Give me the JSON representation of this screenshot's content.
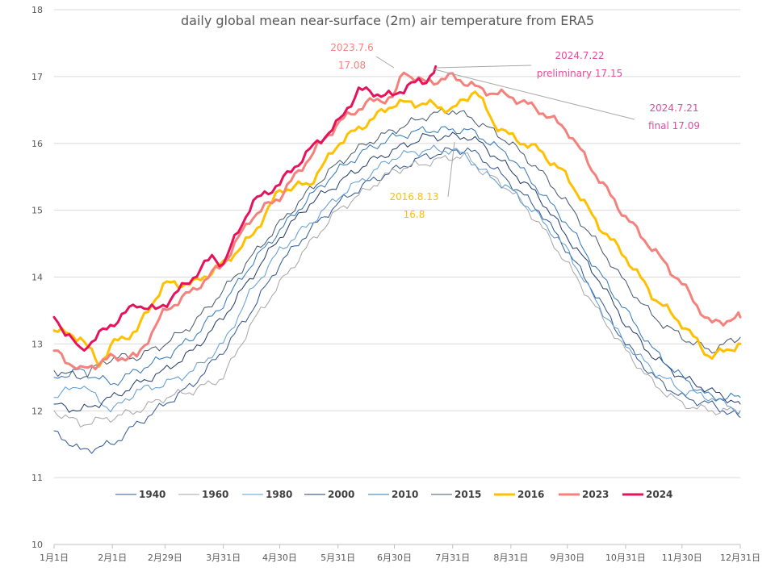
{
  "chart_data": {
    "type": "line",
    "title": "daily global mean near-surface (2m) air temperature from ERA5",
    "xlabel": "",
    "ylabel": "",
    "x_range": [
      "1月1日",
      "12月31日"
    ],
    "x_ticks": [
      {
        "day": 1,
        "label": "1月1日"
      },
      {
        "day": 32,
        "label": "2月1日"
      },
      {
        "day": 60,
        "label": "2月29日"
      },
      {
        "day": 91,
        "label": "3月31日"
      },
      {
        "day": 121,
        "label": "4月30日"
      },
      {
        "day": 152,
        "label": "5月31日"
      },
      {
        "day": 182,
        "label": "6月30日"
      },
      {
        "day": 213,
        "label": "7月31日"
      },
      {
        "day": 244,
        "label": "8月31日"
      },
      {
        "day": 274,
        "label": "9月30日"
      },
      {
        "day": 305,
        "label": "10月31日"
      },
      {
        "day": 335,
        "label": "11月30日"
      },
      {
        "day": 366,
        "label": "12月31日"
      }
    ],
    "ylim": [
      10,
      18
    ],
    "y_ticks": [
      10,
      11,
      12,
      13,
      14,
      15,
      16,
      17,
      18
    ],
    "grid": "horizontal",
    "legend_position": "bottom",
    "series": [
      {
        "name": "1940",
        "color": "#2e5596",
        "width": 1,
        "points": [
          [
            1,
            11.7
          ],
          [
            15,
            11.4
          ],
          [
            32,
            11.5
          ],
          [
            45,
            11.8
          ],
          [
            60,
            12.1
          ],
          [
            75,
            12.4
          ],
          [
            91,
            12.9
          ],
          [
            106,
            13.5
          ],
          [
            121,
            14.2
          ],
          [
            137,
            14.7
          ],
          [
            152,
            15.1
          ],
          [
            167,
            15.4
          ],
          [
            182,
            15.6
          ],
          [
            198,
            15.8
          ],
          [
            213,
            15.9
          ],
          [
            221,
            15.9
          ],
          [
            228,
            15.8
          ],
          [
            244,
            15.4
          ],
          [
            259,
            15.0
          ],
          [
            274,
            14.4
          ],
          [
            290,
            13.7
          ],
          [
            305,
            13.0
          ],
          [
            320,
            12.5
          ],
          [
            335,
            12.2
          ],
          [
            350,
            12.1
          ],
          [
            366,
            11.9
          ]
        ]
      },
      {
        "name": "1960",
        "color": "#a5a5a5",
        "width": 1,
        "points": [
          [
            1,
            12.0
          ],
          [
            15,
            11.8
          ],
          [
            32,
            11.9
          ],
          [
            45,
            12.0
          ],
          [
            60,
            12.2
          ],
          [
            75,
            12.3
          ],
          [
            91,
            12.5
          ],
          [
            106,
            13.3
          ],
          [
            121,
            13.9
          ],
          [
            137,
            14.5
          ],
          [
            152,
            15.0
          ],
          [
            167,
            15.3
          ],
          [
            182,
            15.6
          ],
          [
            198,
            15.7
          ],
          [
            213,
            15.8
          ],
          [
            221,
            15.8
          ],
          [
            228,
            15.6
          ],
          [
            244,
            15.3
          ],
          [
            259,
            14.8
          ],
          [
            274,
            14.2
          ],
          [
            290,
            13.5
          ],
          [
            305,
            12.9
          ],
          [
            320,
            12.4
          ],
          [
            335,
            12.1
          ],
          [
            350,
            12.0
          ],
          [
            366,
            12.0
          ]
        ]
      },
      {
        "name": "1980",
        "color": "#5b9bd5",
        "width": 1,
        "points": [
          [
            1,
            12.2
          ],
          [
            15,
            12.4
          ],
          [
            32,
            12.0
          ],
          [
            45,
            12.3
          ],
          [
            60,
            12.4
          ],
          [
            75,
            12.6
          ],
          [
            91,
            13.0
          ],
          [
            106,
            13.8
          ],
          [
            121,
            14.4
          ],
          [
            137,
            14.8
          ],
          [
            152,
            15.2
          ],
          [
            167,
            15.5
          ],
          [
            182,
            15.8
          ],
          [
            198,
            15.9
          ],
          [
            213,
            15.9
          ],
          [
            221,
            15.8
          ],
          [
            228,
            15.6
          ],
          [
            244,
            15.3
          ],
          [
            259,
            14.9
          ],
          [
            274,
            14.4
          ],
          [
            290,
            13.6
          ],
          [
            305,
            13.0
          ],
          [
            320,
            12.6
          ],
          [
            335,
            12.3
          ],
          [
            350,
            12.2
          ],
          [
            366,
            12.0
          ]
        ]
      },
      {
        "name": "2000",
        "color": "#1f3864",
        "width": 1,
        "points": [
          [
            1,
            12.1
          ],
          [
            15,
            12.0
          ],
          [
            32,
            12.2
          ],
          [
            45,
            12.4
          ],
          [
            60,
            12.6
          ],
          [
            75,
            12.9
          ],
          [
            91,
            13.4
          ],
          [
            106,
            14.0
          ],
          [
            121,
            14.6
          ],
          [
            137,
            15.1
          ],
          [
            152,
            15.4
          ],
          [
            167,
            15.7
          ],
          [
            182,
            15.9
          ],
          [
            198,
            16.1
          ],
          [
            213,
            16.1
          ],
          [
            221,
            16.1
          ],
          [
            228,
            16.0
          ],
          [
            244,
            15.6
          ],
          [
            259,
            15.2
          ],
          [
            274,
            14.6
          ],
          [
            290,
            14.0
          ],
          [
            305,
            13.3
          ],
          [
            320,
            12.8
          ],
          [
            335,
            12.5
          ],
          [
            350,
            12.3
          ],
          [
            366,
            12.1
          ]
        ]
      },
      {
        "name": "2010",
        "color": "#2e75b6",
        "width": 1,
        "points": [
          [
            1,
            12.5
          ],
          [
            15,
            12.6
          ],
          [
            32,
            12.4
          ],
          [
            45,
            12.6
          ],
          [
            60,
            12.8
          ],
          [
            75,
            13.1
          ],
          [
            91,
            13.6
          ],
          [
            106,
            14.2
          ],
          [
            121,
            14.7
          ],
          [
            137,
            15.2
          ],
          [
            152,
            15.6
          ],
          [
            167,
            15.9
          ],
          [
            182,
            16.1
          ],
          [
            198,
            16.2
          ],
          [
            213,
            16.2
          ],
          [
            221,
            16.2
          ],
          [
            228,
            16.1
          ],
          [
            244,
            15.8
          ],
          [
            259,
            15.3
          ],
          [
            274,
            14.8
          ],
          [
            290,
            14.1
          ],
          [
            305,
            13.5
          ],
          [
            320,
            12.9
          ],
          [
            335,
            12.5
          ],
          [
            350,
            12.2
          ],
          [
            366,
            12.2
          ]
        ]
      },
      {
        "name": "2015",
        "color": "#44546a",
        "width": 1,
        "points": [
          [
            1,
            12.6
          ],
          [
            15,
            12.5
          ],
          [
            32,
            12.8
          ],
          [
            45,
            12.8
          ],
          [
            60,
            13.0
          ],
          [
            75,
            13.3
          ],
          [
            91,
            13.8
          ],
          [
            106,
            14.3
          ],
          [
            121,
            14.8
          ],
          [
            137,
            15.3
          ],
          [
            152,
            15.7
          ],
          [
            167,
            16.0
          ],
          [
            182,
            16.2
          ],
          [
            198,
            16.4
          ],
          [
            213,
            16.5
          ],
          [
            221,
            16.4
          ],
          [
            228,
            16.3
          ],
          [
            244,
            16.0
          ],
          [
            259,
            15.6
          ],
          [
            274,
            15.1
          ],
          [
            290,
            14.5
          ],
          [
            305,
            13.9
          ],
          [
            320,
            13.4
          ],
          [
            335,
            13.1
          ],
          [
            350,
            12.9
          ],
          [
            366,
            13.1
          ]
        ]
      },
      {
        "name": "2016",
        "color": "#ffc000",
        "width": 3,
        "points": [
          [
            1,
            13.2
          ],
          [
            15,
            13.1
          ],
          [
            25,
            12.7
          ],
          [
            32,
            13.0
          ],
          [
            45,
            13.2
          ],
          [
            55,
            13.7
          ],
          [
            60,
            13.9
          ],
          [
            75,
            13.9
          ],
          [
            91,
            14.2
          ],
          [
            106,
            14.6
          ],
          [
            121,
            15.3
          ],
          [
            137,
            15.4
          ],
          [
            145,
            15.7
          ],
          [
            152,
            16.0
          ],
          [
            167,
            16.3
          ],
          [
            182,
            16.6
          ],
          [
            198,
            16.6
          ],
          [
            213,
            16.5
          ],
          [
            225,
            16.8
          ],
          [
            235,
            16.3
          ],
          [
            244,
            16.1
          ],
          [
            259,
            15.9
          ],
          [
            274,
            15.5
          ],
          [
            290,
            14.8
          ],
          [
            305,
            14.3
          ],
          [
            320,
            13.7
          ],
          [
            335,
            13.3
          ],
          [
            350,
            12.8
          ],
          [
            366,
            13.0
          ]
        ]
      },
      {
        "name": "2023",
        "color": "#f4817c",
        "width": 3,
        "points": [
          [
            1,
            12.9
          ],
          [
            15,
            12.6
          ],
          [
            32,
            12.8
          ],
          [
            45,
            12.8
          ],
          [
            60,
            13.5
          ],
          [
            75,
            13.8
          ],
          [
            91,
            14.2
          ],
          [
            106,
            14.9
          ],
          [
            121,
            15.2
          ],
          [
            137,
            15.8
          ],
          [
            152,
            16.3
          ],
          [
            167,
            16.6
          ],
          [
            182,
            16.7
          ],
          [
            187,
            17.08
          ],
          [
            198,
            16.9
          ],
          [
            213,
            17.0
          ],
          [
            221,
            16.9
          ],
          [
            228,
            16.8
          ],
          [
            244,
            16.7
          ],
          [
            259,
            16.5
          ],
          [
            274,
            16.2
          ],
          [
            290,
            15.5
          ],
          [
            305,
            14.9
          ],
          [
            320,
            14.4
          ],
          [
            335,
            13.9
          ],
          [
            350,
            13.3
          ],
          [
            366,
            13.4
          ]
        ]
      },
      {
        "name": "2024",
        "color": "#e8125a",
        "width": 3,
        "points": [
          [
            1,
            13.4
          ],
          [
            15,
            12.9
          ],
          [
            32,
            13.3
          ],
          [
            45,
            13.6
          ],
          [
            55,
            13.5
          ],
          [
            60,
            13.6
          ],
          [
            75,
            14.0
          ],
          [
            85,
            14.3
          ],
          [
            91,
            14.2
          ],
          [
            106,
            15.1
          ],
          [
            121,
            15.4
          ],
          [
            137,
            15.9
          ],
          [
            152,
            16.3
          ],
          [
            163,
            16.8
          ],
          [
            182,
            16.7
          ],
          [
            190,
            16.9
          ],
          [
            198,
            16.9
          ],
          [
            204,
            17.15
          ]
        ]
      }
    ],
    "annotations": [
      {
        "lines": [
          "2023.7.6",
          "17.08"
        ],
        "color": "#f4817c",
        "point_day": 187,
        "point_value": 17.08
      },
      {
        "lines": [
          "2024.7.22",
          "preliminary 17.15"
        ],
        "color": "#e8499c",
        "point_day": 204,
        "point_value": 17.15
      },
      {
        "lines": [
          "2024.7.21",
          "final 17.09"
        ],
        "color": "#e8499c",
        "point_day": 203,
        "point_value": 17.09
      },
      {
        "lines": [
          "2016.8.13",
          "16.8"
        ],
        "color": "#ffc000",
        "point_day": 225,
        "point_value": 16.8
      }
    ]
  }
}
